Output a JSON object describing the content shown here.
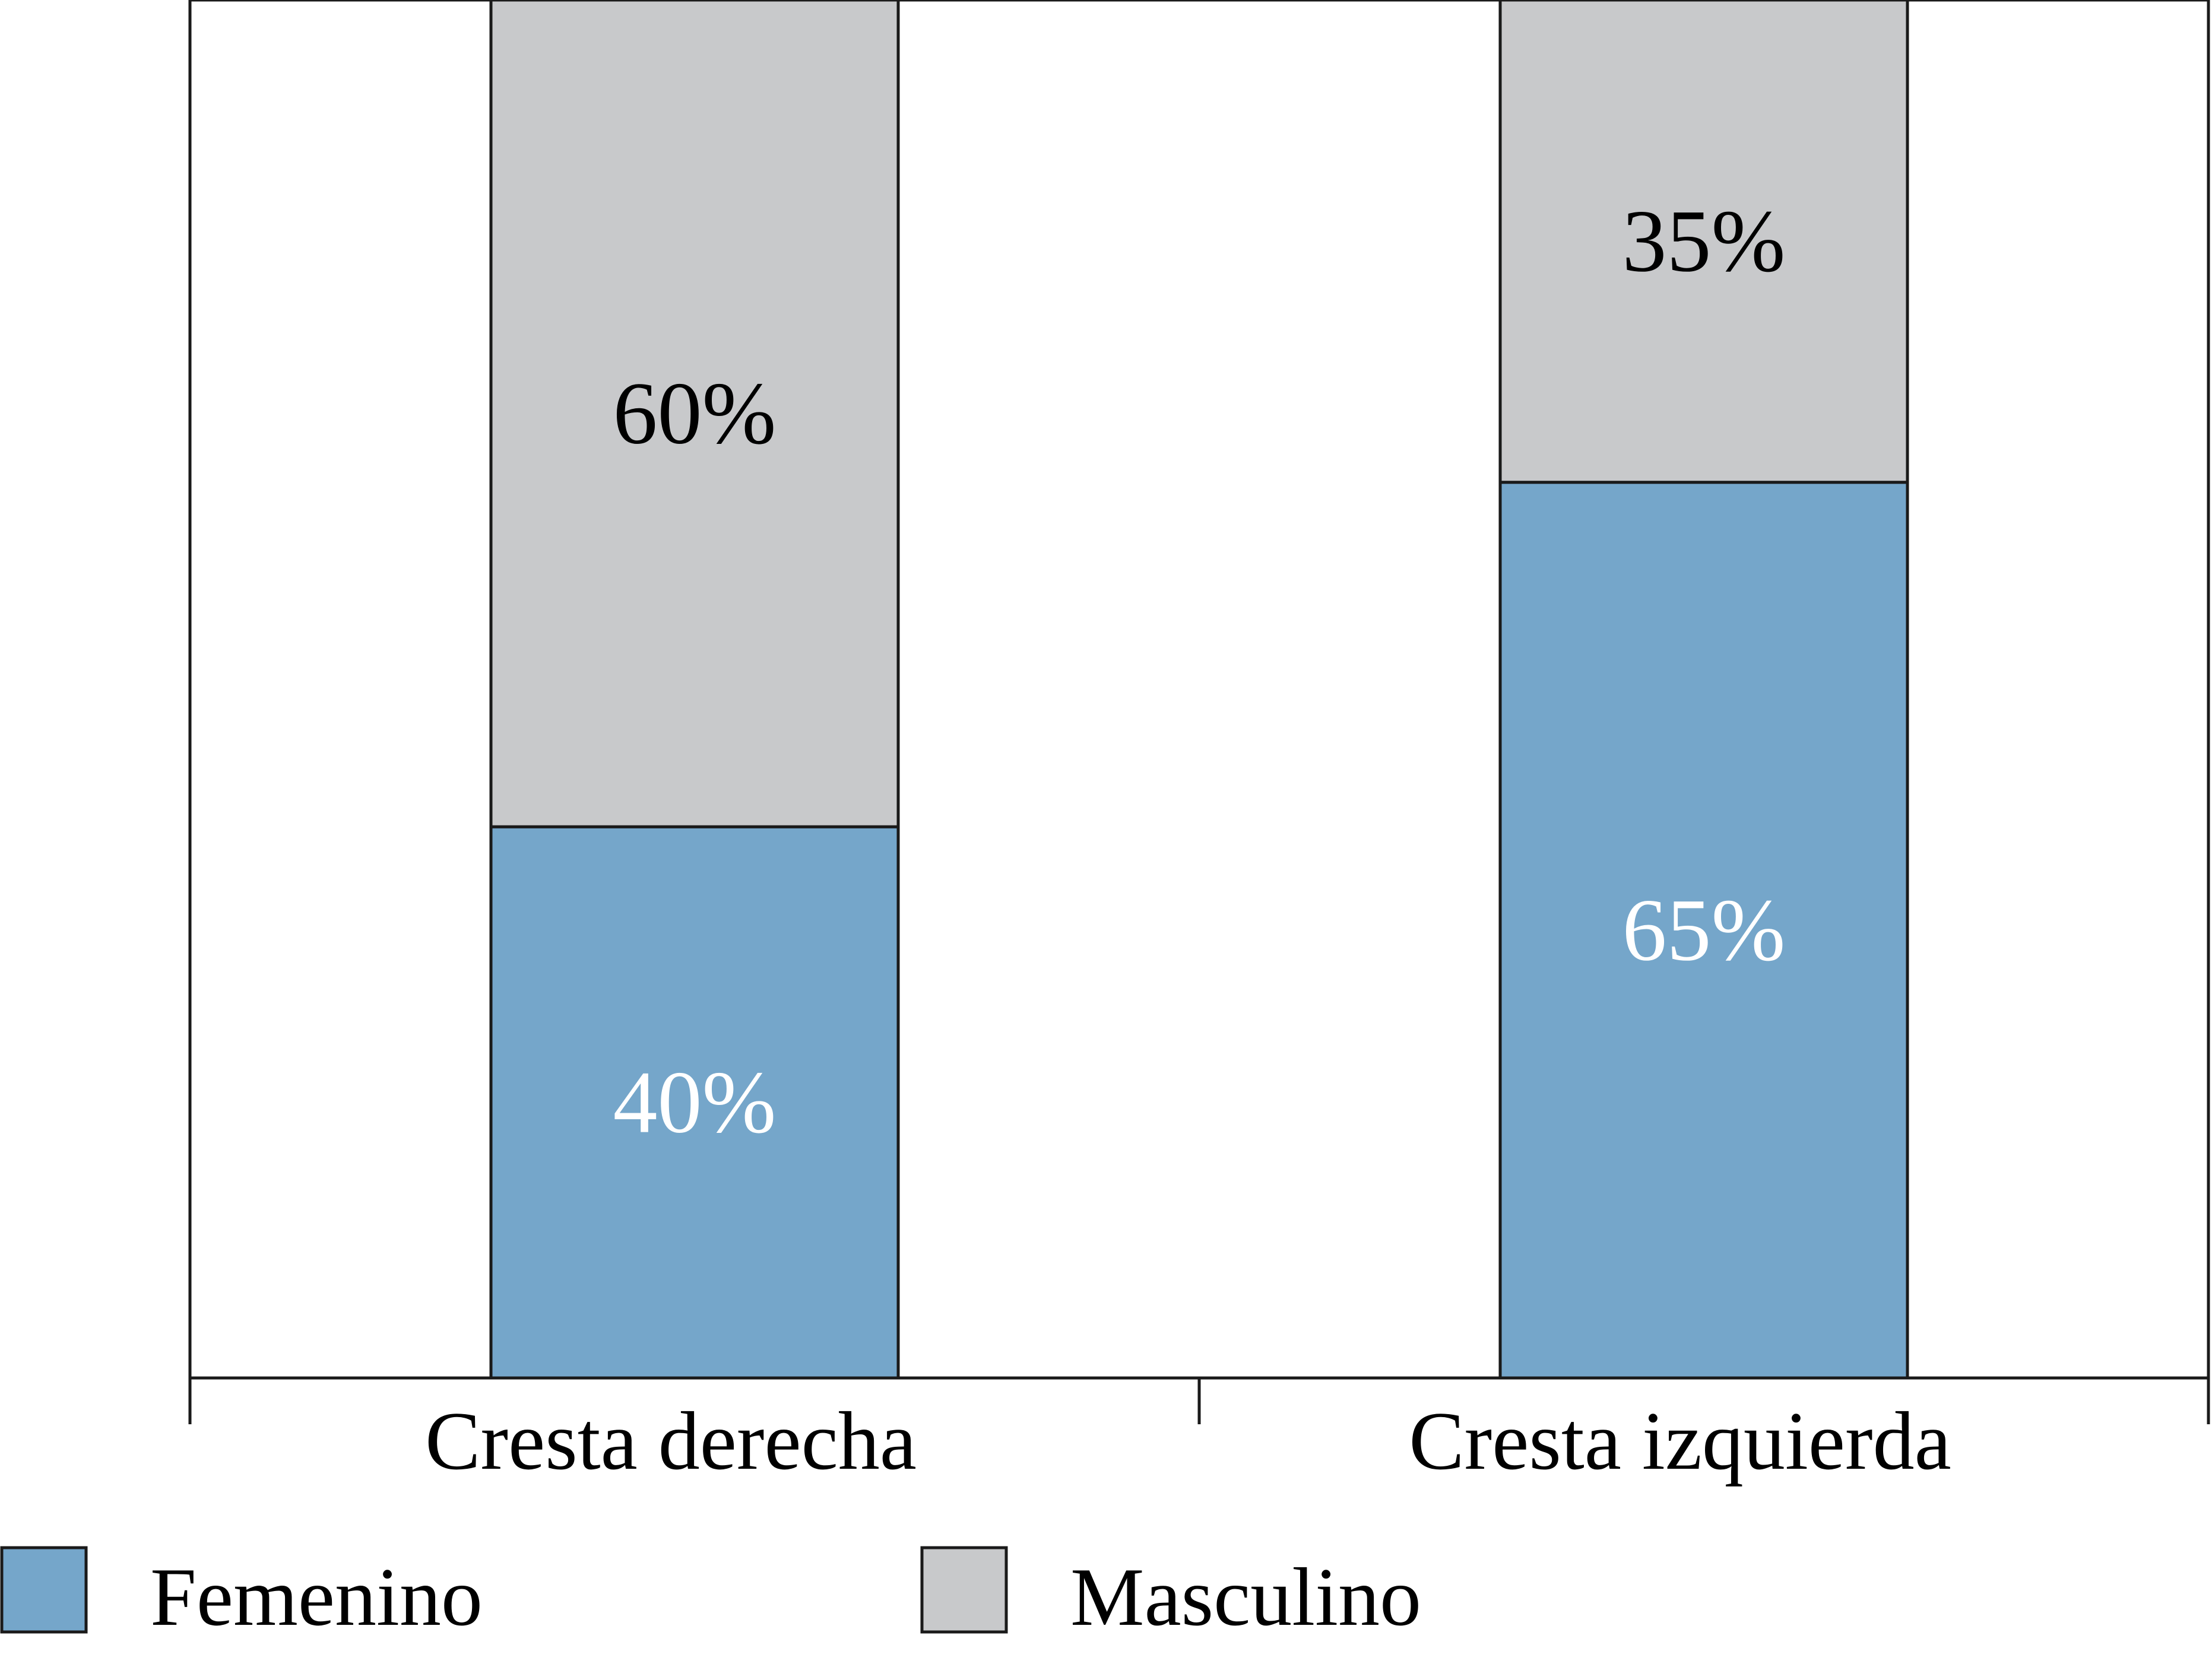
{
  "chart_data": {
    "type": "bar",
    "stacked": true,
    "title": "",
    "xlabel": "",
    "ylabel": "",
    "ylim": [
      0,
      100
    ],
    "unit": "%",
    "grid": false,
    "legend_position": "bottom",
    "categories": [
      "Cresta derecha",
      "Cresta izquierda"
    ],
    "series": [
      {
        "name": "Femenino",
        "values": [
          40,
          65
        ],
        "labels": [
          "40%",
          "65%"
        ],
        "color": "#75a6ca",
        "label_color": "#ffffff"
      },
      {
        "name": "Masculino",
        "values": [
          60,
          35
        ],
        "labels": [
          "60%",
          "35%"
        ],
        "color": "#c8c9cb",
        "label_color": "#000000"
      }
    ]
  }
}
